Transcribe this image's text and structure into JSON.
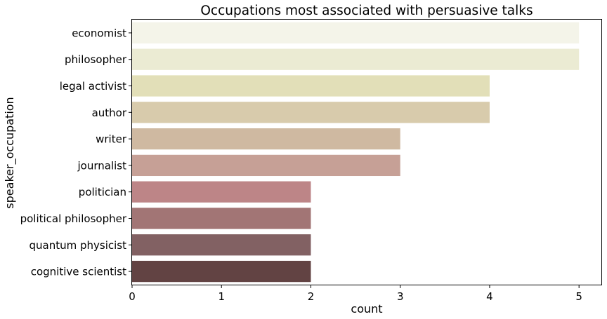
{
  "chart_data": {
    "type": "bar",
    "orientation": "horizontal",
    "title": "Occupations most associated with persuasive talks",
    "xlabel": "count",
    "ylabel": "speaker_occupation",
    "xlim": [
      0,
      5.25
    ],
    "xticks": [
      "0",
      "1",
      "2",
      "3",
      "4",
      "5"
    ],
    "grid": false,
    "categories": [
      "economist",
      "philosopher",
      "legal activist",
      "author",
      "writer",
      "journalist",
      "politician",
      "political philosopher",
      "quantum physicist",
      "cognitive scientist"
    ],
    "values": [
      5,
      5,
      4,
      4,
      3,
      3,
      2,
      2,
      2,
      2
    ],
    "colors": [
      "#f4f4e9",
      "#ebebd3",
      "#e2dfb8",
      "#d8cbac",
      "#cfb9a1",
      "#c6a096",
      "#bd8587",
      "#a27575",
      "#826163",
      "#624343"
    ]
  }
}
